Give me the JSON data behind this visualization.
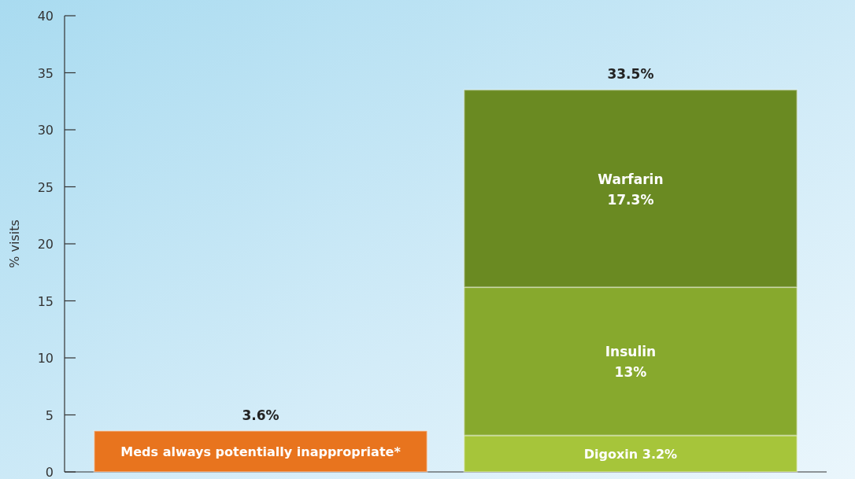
{
  "chart_data": {
    "type": "bar",
    "stacked": true,
    "ylabel": "% visits",
    "categories": [
      null,
      null
    ],
    "ylim": [
      0,
      40
    ],
    "yticks": [
      0,
      5,
      10,
      15,
      20,
      25,
      30,
      35,
      40
    ],
    "series": [
      {
        "name": "Meds always potentially inappropriate*",
        "color": "#e8741e",
        "values": [
          3.6,
          null
        ]
      },
      {
        "name": "Digoxin",
        "color": "#a6c53a",
        "values": [
          null,
          3.2
        ],
        "value_labels": [
          null,
          "3.2%"
        ]
      },
      {
        "name": "Insulin",
        "color": "#87a92d",
        "values": [
          null,
          13
        ],
        "value_labels": [
          null,
          "13%"
        ]
      },
      {
        "name": "Warfarin",
        "color": "#6a8a22",
        "values": [
          null,
          17.3
        ],
        "value_labels": [
          null,
          "17.3%"
        ]
      }
    ],
    "totals": [
      "3.6%",
      "33.5%"
    ]
  }
}
